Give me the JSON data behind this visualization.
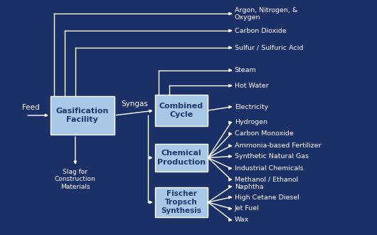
{
  "bg_color": "#1a3066",
  "box_color": "#a8c8e8",
  "box_edge_color": "#ffffff",
  "text_color": "#ffffff",
  "arrow_color": "#ffffff",
  "box_text_color": "#1a3a6b",
  "outputs_combined": [
    "Argon, Nitrogen, &\nOxygen",
    "Carbon Dioxide",
    "Sulfur / Sulfuric Acid",
    "Steam",
    "Hot Water",
    "Electricity"
  ],
  "outputs_chemical": [
    "Hydrogen",
    "Carbon Monoxide",
    "Ammonia-based Fertilizer",
    "Synthetic Natural Gas",
    "Industrial Chemicals",
    "Methanol / Ethanol"
  ],
  "outputs_fischer": [
    "Naphtha",
    "High Cetane Diesel",
    "Jet Fuel",
    "Wax"
  ],
  "label_syngas": "Syngas",
  "label_feed": "Feed",
  "label_slag": "Slag for\nConstruction\nMaterials"
}
